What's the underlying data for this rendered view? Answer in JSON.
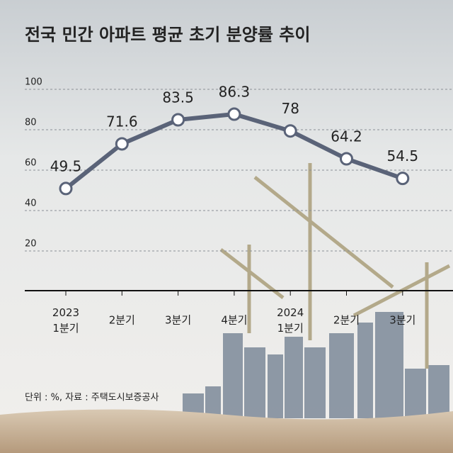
{
  "chart_data": {
    "type": "line",
    "title": "전국 민간 아파트 평균 초기 분양률 추이",
    "note": "단위 : %, 자료 : 주택도시보증공사",
    "categories": [
      "2023\n1분기",
      "2분기",
      "3분기",
      "4분기",
      "2024\n1분기",
      "2분기",
      "3분기"
    ],
    "series": [
      {
        "name": "초기 분양률",
        "color": "#5a6378",
        "values": [
          49.5,
          71.6,
          83.5,
          86.3,
          78,
          64.2,
          54.5
        ]
      }
    ],
    "ylim": [
      0,
      100
    ],
    "yticks": [
      20,
      40,
      60,
      80,
      100
    ],
    "grid": true
  }
}
